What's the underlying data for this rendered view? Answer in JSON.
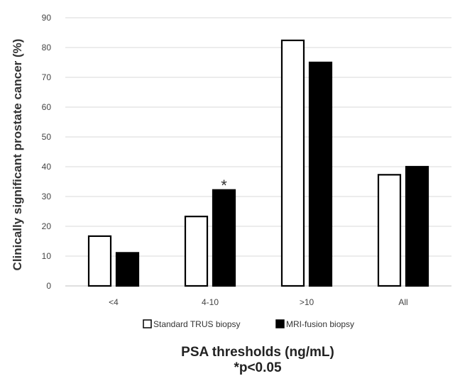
{
  "chart_data": {
    "type": "bar",
    "categories": [
      "<4",
      "4-10",
      ">10",
      "All"
    ],
    "series": [
      {
        "name": "Standard TRUS biopsy",
        "values": [
          16.7,
          23.3,
          82.4,
          37.3
        ],
        "fill": "#ffffff",
        "stroke": "#000000"
      },
      {
        "name": "MRI-fusion biopsy",
        "values": [
          11.1,
          32.2,
          75.0,
          40.0
        ],
        "fill": "#000000",
        "stroke": "#000000"
      }
    ],
    "ylabel": "Clinically significant prostate cancer (%)",
    "xlabel": "PSA thresholds (ng/mL)",
    "footnote": "*p<0.05",
    "ylim": [
      0,
      90
    ],
    "yticks": [
      0,
      10,
      20,
      30,
      40,
      50,
      60,
      70,
      80,
      90
    ],
    "gridlines": true,
    "legend_position": "bottom",
    "annotations": [
      {
        "category": "4-10",
        "series": "MRI-fusion biopsy",
        "text": "*"
      }
    ]
  }
}
